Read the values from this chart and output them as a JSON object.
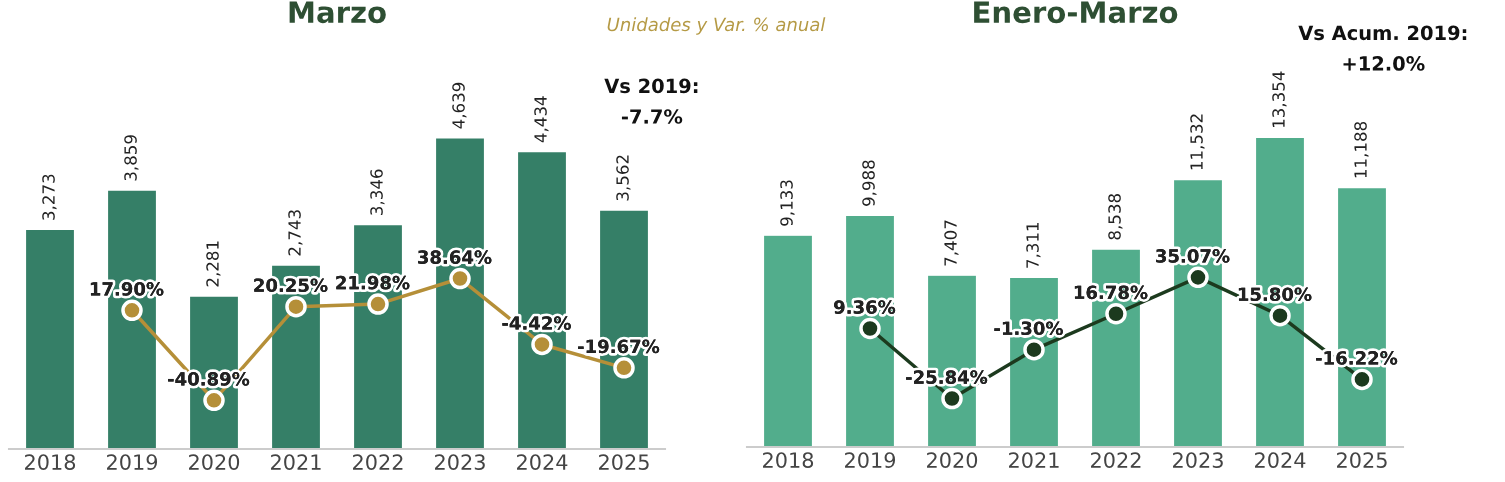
{
  "chart_data": [
    {
      "type": "bar",
      "title": "Marzo",
      "subtitle": "Unidades y Var. % anual",
      "categories": [
        "2018",
        "2019",
        "2020",
        "2021",
        "2022",
        "2023",
        "2024",
        "2025"
      ],
      "series": [
        {
          "color": "#357f67",
          "values": [
            3273,
            3859,
            2281,
            2743,
            3346,
            4639,
            4434,
            3562
          ],
          "value_labels": [
            "3,273",
            "3,859",
            "2,281",
            "2,743",
            "3,346",
            "4,639",
            "4,434",
            "3,562"
          ]
        },
        {
          "type": "line",
          "axis": "y2",
          "color": "#b58f38",
          "marker": "circle",
          "values": [
            null,
            17.9,
            -40.89,
            20.25,
            21.98,
            38.64,
            -4.42,
            -19.67
          ],
          "value_labels": [
            null,
            "17.90%",
            "-40.89%",
            "20.25%",
            "21.98%",
            "38.64%",
            "-4.42%",
            "-19.67%"
          ]
        }
      ],
      "tick_labels": "x",
      "grid": false,
      "legend": false,
      "annotations": [
        "Vs 2019:\n-7.7%"
      ]
    },
    {
      "type": "bar",
      "title": "Enero-Marzo",
      "categories": [
        "2018",
        "2019",
        "2020",
        "2021",
        "2022",
        "2023",
        "2024",
        "2025"
      ],
      "series": [
        {
          "color": "#52ad8c",
          "values": [
            9133,
            9988,
            7407,
            7311,
            8538,
            11532,
            13354,
            11188
          ],
          "value_labels": [
            "9,133",
            "9,988",
            "7,407",
            "7,311",
            "8,538",
            "11,532",
            "13,354",
            "11,188"
          ]
        },
        {
          "type": "line",
          "axis": "y2",
          "color": "#1c3a1e",
          "marker": "circle",
          "values": [
            null,
            9.36,
            -25.84,
            -1.3,
            16.78,
            35.07,
            15.8,
            -16.22
          ],
          "value_labels": [
            null,
            "9.36%",
            "-25.84%",
            "-1.30%",
            "16.78%",
            "35.07%",
            "15.80%",
            "-16.22%"
          ]
        }
      ],
      "tick_labels": "x",
      "grid": false,
      "legend": false,
      "annotations": [
        "Vs Acum. 2019:\n+12.0%"
      ]
    }
  ]
}
